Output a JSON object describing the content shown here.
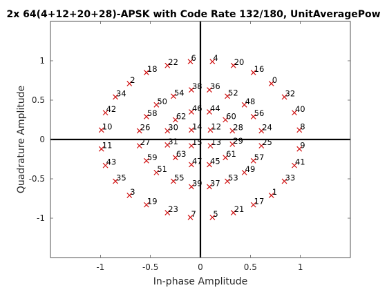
{
  "chart_data": {
    "type": "scatter",
    "title": "2x 64(4+12+20+28)-APSK with Code Rate 132/180, UnitAveragePow",
    "xlabel": "In-phase Amplitude",
    "ylabel": "Quadrature Amplitude",
    "xlim": [
      -1.5,
      1.5
    ],
    "ylim": [
      -1.5,
      1.5
    ],
    "xticks": [
      -1,
      -0.5,
      0,
      0.5,
      1
    ],
    "yticks": [
      -1,
      -0.5,
      0,
      0.5,
      1
    ],
    "xtick_labels": [
      "-1",
      "-0.5",
      "0",
      "0.5",
      "1"
    ],
    "ytick_labels": [
      "-1",
      "-0.5",
      "0",
      "0.5",
      "1"
    ],
    "grid": false,
    "marker": "x",
    "marker_color": "#d01010",
    "points": [
      {
        "label": "0",
        "x": 0.71,
        "y": 0.71
      },
      {
        "label": "1",
        "x": 0.71,
        "y": -0.71
      },
      {
        "label": "2",
        "x": -0.71,
        "y": 0.71
      },
      {
        "label": "3",
        "x": -0.71,
        "y": -0.71
      },
      {
        "label": "4",
        "x": 0.12,
        "y": 0.99
      },
      {
        "label": "5",
        "x": 0.12,
        "y": -0.99
      },
      {
        "label": "6",
        "x": -0.1,
        "y": 0.99
      },
      {
        "label": "7",
        "x": -0.1,
        "y": -0.99
      },
      {
        "label": "8",
        "x": 0.99,
        "y": 0.12
      },
      {
        "label": "9",
        "x": 0.99,
        "y": -0.12
      },
      {
        "label": "10",
        "x": -0.99,
        "y": 0.12
      },
      {
        "label": "11",
        "x": -0.99,
        "y": -0.12
      },
      {
        "label": "12",
        "x": 0.1,
        "y": 0.12
      },
      {
        "label": "13",
        "x": 0.1,
        "y": -0.08
      },
      {
        "label": "14",
        "x": -0.09,
        "y": 0.12
      },
      {
        "label": "15",
        "x": -0.09,
        "y": -0.08
      },
      {
        "label": "16",
        "x": 0.53,
        "y": 0.85
      },
      {
        "label": "17",
        "x": 0.53,
        "y": -0.83
      },
      {
        "label": "18",
        "x": -0.54,
        "y": 0.85
      },
      {
        "label": "19",
        "x": -0.54,
        "y": -0.83
      },
      {
        "label": "20",
        "x": 0.33,
        "y": 0.94
      },
      {
        "label": "21",
        "x": 0.33,
        "y": -0.93
      },
      {
        "label": "22",
        "x": -0.33,
        "y": 0.94
      },
      {
        "label": "23",
        "x": -0.33,
        "y": -0.93
      },
      {
        "label": "24",
        "x": 0.61,
        "y": 0.11
      },
      {
        "label": "25",
        "x": 0.61,
        "y": -0.08
      },
      {
        "label": "26",
        "x": -0.61,
        "y": 0.11
      },
      {
        "label": "27",
        "x": -0.61,
        "y": -0.08
      },
      {
        "label": "28",
        "x": 0.32,
        "y": 0.11
      },
      {
        "label": "29",
        "x": 0.32,
        "y": -0.06
      },
      {
        "label": "30",
        "x": -0.33,
        "y": 0.11
      },
      {
        "label": "31",
        "x": -0.33,
        "y": -0.07
      },
      {
        "label": "32",
        "x": 0.84,
        "y": 0.54
      },
      {
        "label": "33",
        "x": 0.84,
        "y": -0.53
      },
      {
        "label": "34",
        "x": -0.85,
        "y": 0.54
      },
      {
        "label": "35",
        "x": -0.85,
        "y": -0.53
      },
      {
        "label": "36",
        "x": 0.09,
        "y": 0.63
      },
      {
        "label": "37",
        "x": 0.09,
        "y": -0.6
      },
      {
        "label": "38",
        "x": -0.09,
        "y": 0.63
      },
      {
        "label": "39",
        "x": -0.09,
        "y": -0.6
      },
      {
        "label": "40",
        "x": 0.94,
        "y": 0.34
      },
      {
        "label": "41",
        "x": 0.94,
        "y": -0.33
      },
      {
        "label": "42",
        "x": -0.95,
        "y": 0.34
      },
      {
        "label": "43",
        "x": -0.95,
        "y": -0.33
      },
      {
        "label": "44",
        "x": 0.09,
        "y": 0.35
      },
      {
        "label": "45",
        "x": 0.09,
        "y": -0.32
      },
      {
        "label": "46",
        "x": -0.09,
        "y": 0.35
      },
      {
        "label": "47",
        "x": -0.09,
        "y": -0.32
      },
      {
        "label": "48",
        "x": 0.44,
        "y": 0.44
      },
      {
        "label": "49",
        "x": 0.44,
        "y": -0.42
      },
      {
        "label": "50",
        "x": -0.44,
        "y": 0.44
      },
      {
        "label": "51",
        "x": -0.44,
        "y": -0.42
      },
      {
        "label": "52",
        "x": 0.27,
        "y": 0.55
      },
      {
        "label": "53",
        "x": 0.27,
        "y": -0.53
      },
      {
        "label": "54",
        "x": -0.27,
        "y": 0.55
      },
      {
        "label": "55",
        "x": -0.27,
        "y": -0.53
      },
      {
        "label": "56",
        "x": 0.53,
        "y": 0.29
      },
      {
        "label": "57",
        "x": 0.53,
        "y": -0.27
      },
      {
        "label": "58",
        "x": -0.54,
        "y": 0.29
      },
      {
        "label": "59",
        "x": -0.54,
        "y": -0.27
      },
      {
        "label": "60",
        "x": 0.25,
        "y": 0.25
      },
      {
        "label": "61",
        "x": 0.25,
        "y": -0.23
      },
      {
        "label": "62",
        "x": -0.25,
        "y": 0.25
      },
      {
        "label": "63",
        "x": -0.25,
        "y": -0.23
      }
    ]
  }
}
